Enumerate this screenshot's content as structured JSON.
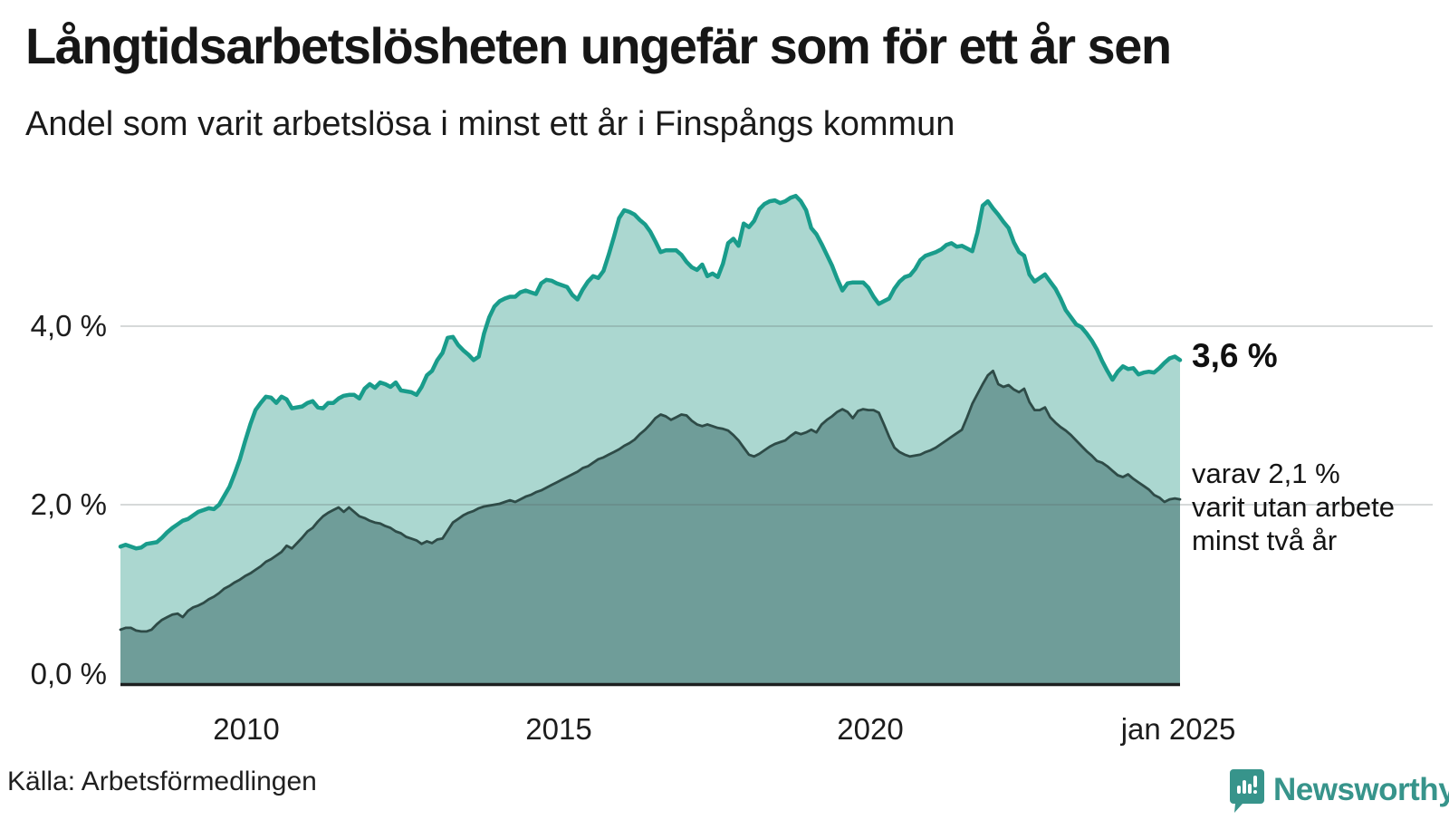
{
  "header": {
    "title": "Långtidsarbetslösheten ungefär som för ett år sen",
    "subtitle": "Andel som varit arbetslösa i minst ett år i Finspångs kommun"
  },
  "annotations": {
    "latest_total": "3,6 %",
    "secondary": [
      "varav 2,1 %",
      "varit utan arbete",
      "minst två år"
    ]
  },
  "axes": {
    "y_ticks": [
      "4,0 %",
      "2,0 %",
      "0,0 %"
    ],
    "x_ticks": [
      "2010",
      "2015",
      "2020",
      "jan 2025"
    ]
  },
  "footer": {
    "source": "Källa: Arbetsförmedlingen",
    "brand": "Newsworthy"
  },
  "colors": {
    "line_total": "#199c8b",
    "fill_total": "#abd7d0",
    "line_two_years": "#2e4b47",
    "fill_two_years": "#6f9d99",
    "gridline": "rgba(90,105,105,0.25)",
    "baseline": "#1d2020",
    "brand_teal": "#37948b",
    "text": "#161616"
  },
  "chart_data": {
    "type": "area",
    "title": "Långtidsarbetslösheten ungefär som för ett år sen",
    "subtitle": "Andel som varit arbetslösa i minst ett år i Finspångs kommun",
    "unit": "%",
    "freq": "monthly",
    "x_start": "2008-01",
    "x_end": "2025-01",
    "xlabel_ticks": [
      {
        "label": "2010",
        "index": 24
      },
      {
        "label": "2015",
        "index": 84
      },
      {
        "label": "2020",
        "index": 144
      },
      {
        "label": "jan 2025",
        "index": 204
      }
    ],
    "ylim": [
      0,
      5.6
    ],
    "gridlines_y": [
      2.0,
      4.0
    ],
    "legend_position": "right-annotations",
    "latest_values": {
      "minst_ett_ar": 3.6,
      "minst_tva_ar": 2.1
    },
    "series": [
      {
        "name": "Andel arbetslösa minst ett år",
        "color": "#199c8b",
        "fill": "#abd7d0",
        "values": [
          1.53,
          1.55,
          1.53,
          1.51,
          1.52,
          1.56,
          1.57,
          1.58,
          1.63,
          1.69,
          1.74,
          1.78,
          1.82,
          1.84,
          1.88,
          1.92,
          1.94,
          1.96,
          1.95,
          2.0,
          2.1,
          2.2,
          2.35,
          2.51,
          2.71,
          2.9,
          3.06,
          3.14,
          3.21,
          3.2,
          3.14,
          3.21,
          3.18,
          3.08,
          3.09,
          3.1,
          3.14,
          3.16,
          3.09,
          3.08,
          3.14,
          3.14,
          3.19,
          3.22,
          3.23,
          3.23,
          3.19,
          3.3,
          3.35,
          3.31,
          3.37,
          3.35,
          3.32,
          3.37,
          3.28,
          3.27,
          3.26,
          3.23,
          3.32,
          3.45,
          3.5,
          3.62,
          3.7,
          3.87,
          3.88,
          3.79,
          3.73,
          3.68,
          3.62,
          3.66,
          3.92,
          4.1,
          4.22,
          4.28,
          4.31,
          4.33,
          4.33,
          4.38,
          4.4,
          4.38,
          4.36,
          4.48,
          4.52,
          4.51,
          4.48,
          4.46,
          4.44,
          4.35,
          4.3,
          4.41,
          4.5,
          4.56,
          4.54,
          4.62,
          4.8,
          5.0,
          5.21,
          5.3,
          5.28,
          5.25,
          5.19,
          5.14,
          5.06,
          4.95,
          4.83,
          4.85,
          4.85,
          4.85,
          4.8,
          4.72,
          4.66,
          4.63,
          4.69,
          4.56,
          4.59,
          4.55,
          4.7,
          4.93,
          4.98,
          4.9,
          5.15,
          5.11,
          5.18,
          5.31,
          5.37,
          5.4,
          5.41,
          5.38,
          5.4,
          5.44,
          5.46,
          5.4,
          5.3,
          5.1,
          5.03,
          4.92,
          4.8,
          4.68,
          4.53,
          4.4,
          4.48,
          4.49,
          4.49,
          4.49,
          4.43,
          4.33,
          4.25,
          4.28,
          4.31,
          4.42,
          4.5,
          4.55,
          4.57,
          4.64,
          4.74,
          4.79,
          4.81,
          4.83,
          4.86,
          4.91,
          4.93,
          4.89,
          4.9,
          4.87,
          4.84,
          5.05,
          5.35,
          5.4,
          5.32,
          5.25,
          5.17,
          5.1,
          4.94,
          4.83,
          4.79,
          4.58,
          4.5,
          4.54,
          4.58,
          4.5,
          4.42,
          4.31,
          4.18,
          4.1,
          4.02,
          3.99,
          3.92,
          3.84,
          3.74,
          3.61,
          3.5,
          3.4,
          3.49,
          3.55,
          3.52,
          3.53,
          3.46,
          3.48,
          3.49,
          3.48,
          3.53,
          3.59,
          3.64,
          3.66,
          3.62
        ]
      },
      {
        "name": "Andel arbetslösa minst två år",
        "color": "#2e4b47",
        "fill": "#6f9d99",
        "values": [
          0.6,
          0.62,
          0.62,
          0.59,
          0.58,
          0.58,
          0.6,
          0.66,
          0.71,
          0.74,
          0.77,
          0.78,
          0.74,
          0.81,
          0.85,
          0.87,
          0.9,
          0.94,
          0.97,
          1.01,
          1.06,
          1.09,
          1.13,
          1.16,
          1.2,
          1.23,
          1.27,
          1.31,
          1.36,
          1.39,
          1.43,
          1.47,
          1.54,
          1.51,
          1.57,
          1.63,
          1.7,
          1.74,
          1.81,
          1.87,
          1.91,
          1.94,
          1.97,
          1.92,
          1.97,
          1.92,
          1.87,
          1.85,
          1.82,
          1.8,
          1.79,
          1.76,
          1.74,
          1.7,
          1.68,
          1.64,
          1.62,
          1.6,
          1.56,
          1.59,
          1.57,
          1.61,
          1.62,
          1.71,
          1.8,
          1.84,
          1.88,
          1.91,
          1.93,
          1.96,
          1.98,
          1.99,
          2.0,
          2.01,
          2.03,
          2.05,
          2.03,
          2.06,
          2.09,
          2.11,
          2.14,
          2.16,
          2.19,
          2.22,
          2.25,
          2.28,
          2.31,
          2.34,
          2.37,
          2.41,
          2.43,
          2.47,
          2.51,
          2.53,
          2.56,
          2.59,
          2.62,
          2.66,
          2.69,
          2.73,
          2.79,
          2.84,
          2.9,
          2.97,
          3.01,
          2.99,
          2.95,
          2.98,
          3.01,
          3.0,
          2.94,
          2.9,
          2.88,
          2.9,
          2.88,
          2.86,
          2.85,
          2.83,
          2.78,
          2.72,
          2.64,
          2.56,
          2.54,
          2.57,
          2.61,
          2.65,
          2.68,
          2.7,
          2.72,
          2.77,
          2.81,
          2.79,
          2.81,
          2.84,
          2.81,
          2.9,
          2.95,
          2.99,
          3.04,
          3.07,
          3.04,
          2.97,
          3.05,
          3.07,
          3.06,
          3.06,
          3.03,
          2.9,
          2.76,
          2.64,
          2.59,
          2.56,
          2.54,
          2.55,
          2.56,
          2.59,
          2.61,
          2.64,
          2.68,
          2.72,
          2.76,
          2.8,
          2.84,
          2.98,
          3.13,
          3.24,
          3.35,
          3.45,
          3.5,
          3.35,
          3.32,
          3.34,
          3.29,
          3.26,
          3.3,
          3.15,
          3.06,
          3.06,
          3.09,
          2.98,
          2.92,
          2.87,
          2.83,
          2.78,
          2.72,
          2.66,
          2.6,
          2.55,
          2.49,
          2.47,
          2.43,
          2.38,
          2.33,
          2.31,
          2.34,
          2.29,
          2.25,
          2.21,
          2.17,
          2.11,
          2.08,
          2.03,
          2.06,
          2.07,
          2.06
        ]
      }
    ]
  }
}
